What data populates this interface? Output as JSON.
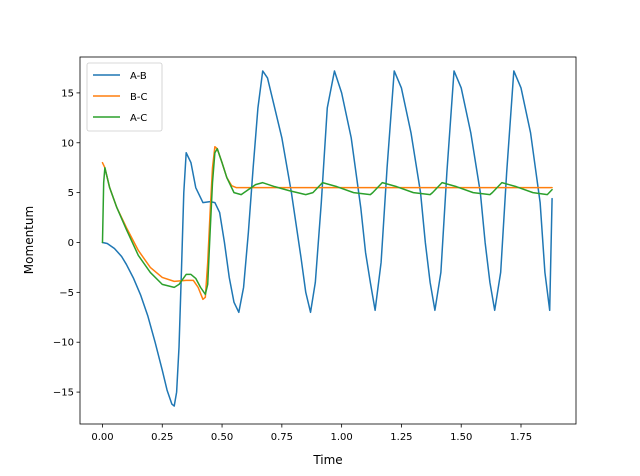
{
  "chart_data": {
    "type": "line",
    "title": "",
    "xlabel": "Time",
    "ylabel": "Momentum",
    "xlim": [
      -0.094,
      1.98
    ],
    "ylim": [
      -18.2,
      18.6
    ],
    "xticks": [
      0.0,
      0.25,
      0.5,
      0.75,
      1.0,
      1.25,
      1.5,
      1.75
    ],
    "xtick_labels": [
      "0.00",
      "0.25",
      "0.50",
      "0.75",
      "1.00",
      "1.25",
      "1.50",
      "1.75"
    ],
    "yticks": [
      -15,
      -10,
      -5,
      0,
      5,
      10,
      15
    ],
    "ytick_labels": [
      "−15",
      "−10",
      "−5",
      "0",
      "5",
      "10",
      "15"
    ],
    "grid": false,
    "legend_position": "top-left",
    "series": [
      {
        "name": "A-B",
        "color": "#1f77b4",
        "x": [
          0.0,
          0.02,
          0.05,
          0.08,
          0.1,
          0.13,
          0.16,
          0.19,
          0.22,
          0.25,
          0.27,
          0.29,
          0.3,
          0.31,
          0.32,
          0.33,
          0.34,
          0.35,
          0.37,
          0.39,
          0.42,
          0.45,
          0.47,
          0.49,
          0.51,
          0.53,
          0.55,
          0.57,
          0.59,
          0.61,
          0.63,
          0.65,
          0.67,
          0.69,
          0.72,
          0.75,
          0.79,
          0.83,
          0.85,
          0.87,
          0.89,
          0.915,
          0.94,
          0.97,
          1.0,
          1.04,
          1.08,
          1.1,
          1.12,
          1.14,
          1.165,
          1.19,
          1.22,
          1.25,
          1.29,
          1.33,
          1.35,
          1.37,
          1.39,
          1.415,
          1.44,
          1.47,
          1.5,
          1.54,
          1.58,
          1.6,
          1.62,
          1.64,
          1.665,
          1.69,
          1.72,
          1.75,
          1.79,
          1.83,
          1.85,
          1.87,
          1.88
        ],
        "y": [
          0.0,
          -0.1,
          -0.6,
          -1.4,
          -2.2,
          -3.6,
          -5.3,
          -7.4,
          -10.0,
          -12.8,
          -14.8,
          -16.2,
          -16.4,
          -15.0,
          -10.5,
          -3.0,
          5.0,
          9.0,
          8.0,
          5.5,
          4.0,
          4.1,
          4.0,
          3.0,
          0.0,
          -3.5,
          -6.0,
          -7.0,
          -4.5,
          1.0,
          7.5,
          13.5,
          17.2,
          16.5,
          13.5,
          10.5,
          5.0,
          -1.5,
          -5.0,
          -7.0,
          -4.0,
          4.0,
          13.5,
          17.2,
          15.0,
          10.5,
          3.5,
          -1.0,
          -4.0,
          -6.8,
          -2.0,
          7.5,
          17.2,
          15.5,
          11.0,
          5.0,
          0.0,
          -4.0,
          -6.8,
          -3.0,
          7.0,
          17.2,
          15.5,
          11.0,
          5.0,
          0.0,
          -4.0,
          -6.8,
          -3.0,
          7.0,
          17.2,
          15.5,
          11.0,
          4.0,
          -3.0,
          -6.8,
          4.4
        ]
      },
      {
        "name": "B-C",
        "color": "#ff7f0e",
        "x": [
          0.0,
          0.01,
          0.03,
          0.06,
          0.1,
          0.15,
          0.2,
          0.25,
          0.3,
          0.35,
          0.38,
          0.4,
          0.42,
          0.43,
          0.44,
          0.45,
          0.46,
          0.47,
          0.48,
          0.5,
          0.52,
          0.54,
          0.56,
          0.6,
          0.8,
          1.0,
          1.5,
          1.88
        ],
        "y": [
          8.0,
          7.5,
          5.5,
          3.5,
          1.5,
          -0.8,
          -2.5,
          -3.5,
          -3.9,
          -3.8,
          -3.8,
          -4.5,
          -5.7,
          -5.5,
          -2.0,
          3.0,
          7.5,
          9.6,
          9.4,
          8.0,
          6.5,
          5.7,
          5.5,
          5.5,
          5.5,
          5.5,
          5.5,
          5.5
        ]
      },
      {
        "name": "A-C",
        "color": "#2ca02c",
        "x": [
          0.0,
          0.005,
          0.01,
          0.03,
          0.06,
          0.1,
          0.15,
          0.2,
          0.25,
          0.3,
          0.32,
          0.35,
          0.37,
          0.39,
          0.41,
          0.43,
          0.44,
          0.45,
          0.46,
          0.47,
          0.48,
          0.5,
          0.52,
          0.55,
          0.58,
          0.61,
          0.64,
          0.67,
          0.72,
          0.78,
          0.85,
          0.88,
          0.92,
          0.98,
          1.05,
          1.12,
          1.13,
          1.17,
          1.23,
          1.3,
          1.37,
          1.38,
          1.42,
          1.48,
          1.55,
          1.62,
          1.63,
          1.67,
          1.73,
          1.8,
          1.86,
          1.88
        ],
        "y": [
          0.0,
          6.0,
          7.5,
          5.5,
          3.5,
          1.3,
          -1.3,
          -3.0,
          -4.2,
          -4.5,
          -4.2,
          -3.2,
          -3.2,
          -3.6,
          -4.5,
          -5.2,
          -4.2,
          1.0,
          6.0,
          9.0,
          9.4,
          8.0,
          6.5,
          5.0,
          4.8,
          5.3,
          5.8,
          6.0,
          5.6,
          5.2,
          4.8,
          5.0,
          6.0,
          5.6,
          5.0,
          4.8,
          5.0,
          6.0,
          5.6,
          5.0,
          4.8,
          5.0,
          6.0,
          5.6,
          5.0,
          4.8,
          5.0,
          6.0,
          5.6,
          5.0,
          4.8,
          5.3
        ]
      }
    ]
  }
}
